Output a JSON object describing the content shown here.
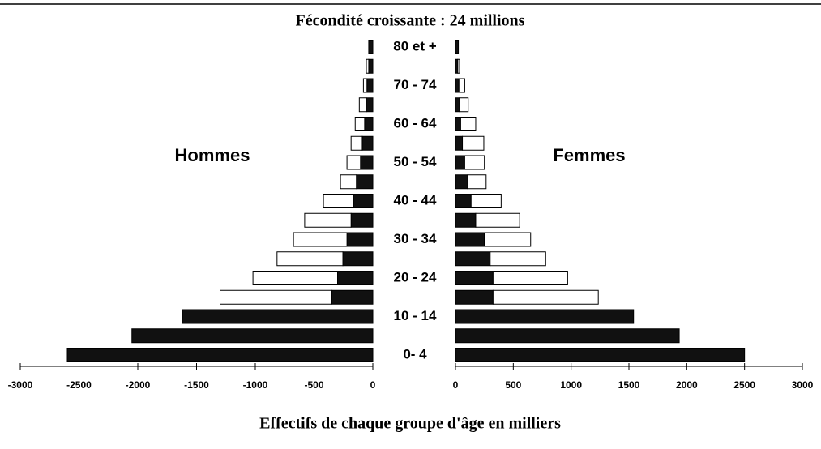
{
  "title": "Fécondité croissante : 24 millions",
  "xlabel": "Effectifs de chaque groupe d'âge en milliers",
  "categories": [
    "0-  4",
    null,
    "10 - 14",
    null,
    "20 - 24",
    null,
    "30 - 34",
    null,
    "40 - 44",
    null,
    "50 - 54",
    null,
    "60 - 64",
    null,
    "70 - 74",
    null,
    "80 et +"
  ],
  "chart_data": [
    {
      "type": "bar",
      "orientation": "horizontal",
      "stacked": true,
      "title": "Hommes",
      "xlim": [
        -3000,
        0
      ],
      "xticks": [
        -3000,
        -2500,
        -2000,
        -1500,
        -1000,
        -500,
        0
      ],
      "series": [
        {
          "color": "#111111",
          "values": [
            -2600,
            -2050,
            -1620,
            -350,
            -300,
            -255,
            -220,
            -185,
            -165,
            -140,
            -105,
            -90,
            -70,
            -55,
            -50,
            -35,
            -35
          ]
        },
        {
          "color": "#ffffff",
          "values": [
            0,
            0,
            0,
            -950,
            -720,
            -560,
            -455,
            -395,
            -255,
            -135,
            -115,
            -95,
            -80,
            -60,
            -30,
            -20,
            0
          ]
        }
      ]
    },
    {
      "type": "bar",
      "orientation": "horizontal",
      "stacked": true,
      "title": "Femmes",
      "xlim": [
        0,
        3000
      ],
      "xticks": [
        0,
        500,
        1000,
        1500,
        2000,
        2500,
        3000
      ],
      "series": [
        {
          "color": "#111111",
          "values": [
            2500,
            1935,
            1540,
            325,
            325,
            300,
            250,
            175,
            135,
            105,
            80,
            60,
            45,
            35,
            30,
            20,
            25
          ]
        },
        {
          "color": "#ffffff",
          "values": [
            0,
            0,
            0,
            910,
            645,
            480,
            400,
            380,
            260,
            160,
            170,
            185,
            130,
            75,
            50,
            15,
            0
          ]
        }
      ]
    }
  ]
}
